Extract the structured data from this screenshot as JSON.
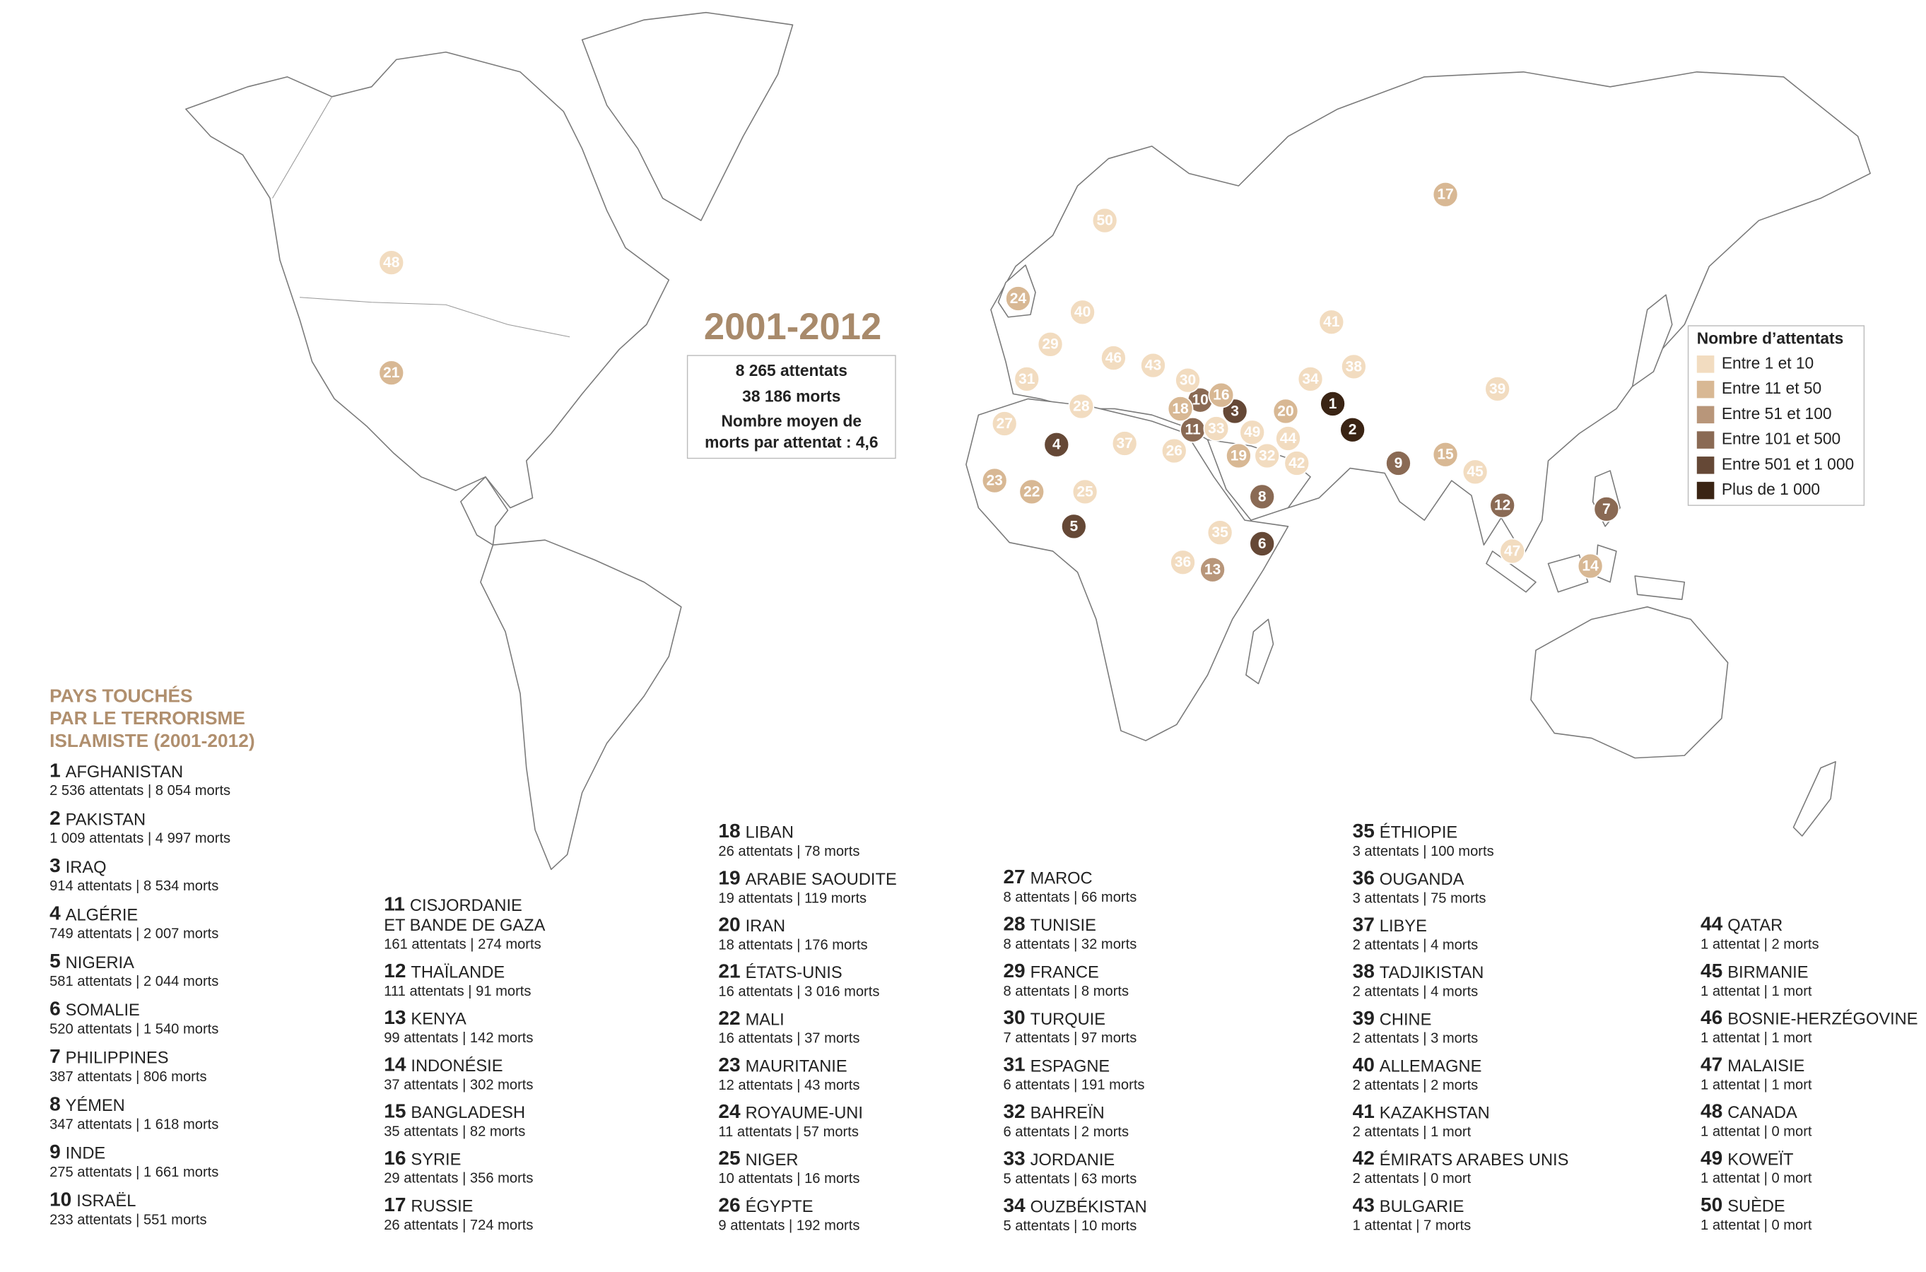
{
  "title": "2001-2012",
  "summary": [
    "8 265 attentats",
    "38 186 morts",
    "Nombre moyen de",
    "morts par attentat : 4,6"
  ],
  "legend": {
    "title": "Nombre d’attentats",
    "items": [
      {
        "label": "Entre 1 et 10",
        "color": "#f2dcc0"
      },
      {
        "label": "Entre 11 et 50",
        "color": "#d8b894"
      },
      {
        "label": "Entre 51 et 100",
        "color": "#b8967a"
      },
      {
        "label": "Entre 101 et 500",
        "color": "#8a6a54"
      },
      {
        "label": "Entre 501 et 1 000",
        "color": "#654836"
      },
      {
        "label": "Plus de 1 000",
        "color": "#3a2414"
      }
    ]
  },
  "list_title": [
    "PAYS TOUCHÉS",
    "PAR LE TERRORISME",
    "ISLAMISTE (2001-2012)"
  ],
  "countries": [
    {
      "rank": 1,
      "name": "AFGHANISTAN",
      "stats": "2 536 attentats | 8 054 morts"
    },
    {
      "rank": 2,
      "name": "PAKISTAN",
      "stats": "1 009 attentats | 4 997 morts"
    },
    {
      "rank": 3,
      "name": "IRAQ",
      "stats": "914 attentats | 8 534 morts"
    },
    {
      "rank": 4,
      "name": "ALGÉRIE",
      "stats": "749 attentats | 2 007 morts"
    },
    {
      "rank": 5,
      "name": "NIGERIA",
      "stats": "581 attentats | 2 044 morts"
    },
    {
      "rank": 6,
      "name": "SOMALIE",
      "stats": "520 attentats | 1 540 morts"
    },
    {
      "rank": 7,
      "name": "PHILIPPINES",
      "stats": "387 attentats | 806 morts"
    },
    {
      "rank": 8,
      "name": "YÉMEN",
      "stats": "347 attentats | 1 618 morts"
    },
    {
      "rank": 9,
      "name": "INDE",
      "stats": "275 attentats | 1 661 morts"
    },
    {
      "rank": 10,
      "name": "ISRAËL",
      "stats": "233 attentats | 551 morts"
    },
    {
      "rank": 11,
      "name": [
        "CISJORDANIE",
        "ET BANDE DE GAZA"
      ],
      "stats": "161 attentats | 274 morts"
    },
    {
      "rank": 12,
      "name": "THAÏLANDE",
      "stats": "111 attentats | 91 morts"
    },
    {
      "rank": 13,
      "name": "KENYA",
      "stats": "99 attentats | 142 morts"
    },
    {
      "rank": 14,
      "name": "INDONÉSIE",
      "stats": "37 attentats | 302 morts"
    },
    {
      "rank": 15,
      "name": "BANGLADESH",
      "stats": "35 attentats | 82 morts"
    },
    {
      "rank": 16,
      "name": "SYRIE",
      "stats": "29 attentats | 356 morts"
    },
    {
      "rank": 17,
      "name": "RUSSIE",
      "stats": "26 attentats | 724 morts"
    },
    {
      "rank": 18,
      "name": "LIBAN",
      "stats": "26 attentats | 78 morts"
    },
    {
      "rank": 19,
      "name": "ARABIE SAOUDITE",
      "stats": "19 attentats | 119 morts"
    },
    {
      "rank": 20,
      "name": "IRAN",
      "stats": "18 attentats | 176 morts"
    },
    {
      "rank": 21,
      "name": "ÉTATS-UNIS",
      "stats": "16 attentats | 3 016 morts"
    },
    {
      "rank": 22,
      "name": "MALI",
      "stats": "16 attentats | 37 morts"
    },
    {
      "rank": 23,
      "name": "MAURITANIE",
      "stats": "12 attentats | 43 morts"
    },
    {
      "rank": 24,
      "name": "ROYAUME-UNI",
      "stats": "11 attentats | 57 morts"
    },
    {
      "rank": 25,
      "name": "NIGER",
      "stats": "10 attentats | 16 morts"
    },
    {
      "rank": 26,
      "name": "ÉGYPTE",
      "stats": "9 attentats | 192 morts"
    },
    {
      "rank": 27,
      "name": "MAROC",
      "stats": "8 attentats | 66 morts"
    },
    {
      "rank": 28,
      "name": "TUNISIE",
      "stats": "8 attentats | 32 morts"
    },
    {
      "rank": 29,
      "name": "FRANCE",
      "stats": "8 attentats | 8 morts"
    },
    {
      "rank": 30,
      "name": "TURQUIE",
      "stats": "7 attentats | 97 morts"
    },
    {
      "rank": 31,
      "name": "ESPAGNE",
      "stats": "6 attentats | 191 morts"
    },
    {
      "rank": 32,
      "name": "BAHREÏN",
      "stats": "6 attentats | 2 morts"
    },
    {
      "rank": 33,
      "name": "JORDANIE",
      "stats": "5 attentats | 63 morts"
    },
    {
      "rank": 34,
      "name": "OUZBÉKISTAN",
      "stats": "5 attentats | 10 morts"
    },
    {
      "rank": 35,
      "name": "ÉTHIOPIE",
      "stats": "3 attentats | 100 morts"
    },
    {
      "rank": 36,
      "name": "OUGANDA",
      "stats": "3 attentats | 75 morts"
    },
    {
      "rank": 37,
      "name": "LIBYE",
      "stats": "2 attentats | 4 morts"
    },
    {
      "rank": 38,
      "name": "TADJIKISTAN",
      "stats": "2 attentats | 4 morts"
    },
    {
      "rank": 39,
      "name": "CHINE",
      "stats": "2 attentats | 3 morts"
    },
    {
      "rank": 40,
      "name": "ALLEMAGNE",
      "stats": "2 attentats | 2 morts"
    },
    {
      "rank": 41,
      "name": "KAZAKHSTAN",
      "stats": "2 attentats | 1 mort"
    },
    {
      "rank": 42,
      "name": "ÉMIRATS ARABES UNIS",
      "stats": "2 attentats | 0 mort"
    },
    {
      "rank": 43,
      "name": "BULGARIE",
      "stats": "1 attentat | 7 morts"
    },
    {
      "rank": 44,
      "name": "QATAR",
      "stats": "1 attentat | 2 morts"
    },
    {
      "rank": 45,
      "name": "BIRMANIE",
      "stats": "1 attentat | 1 mort"
    },
    {
      "rank": 46,
      "name": "BOSNIE-HERZÉGOVINE",
      "stats": "1 attentat | 1 mort"
    },
    {
      "rank": 47,
      "name": "MALAISIE",
      "stats": "1 attentat | 1 mort"
    },
    {
      "rank": 48,
      "name": "CANADA",
      "stats": "1 attentat | 0 mort"
    },
    {
      "rank": 49,
      "name": "KOWEÏT",
      "stats": "1 attentat | 0 mort"
    },
    {
      "rank": 50,
      "name": "SUÈDE",
      "stats": "1 attentat | 0 mort"
    }
  ]
}
